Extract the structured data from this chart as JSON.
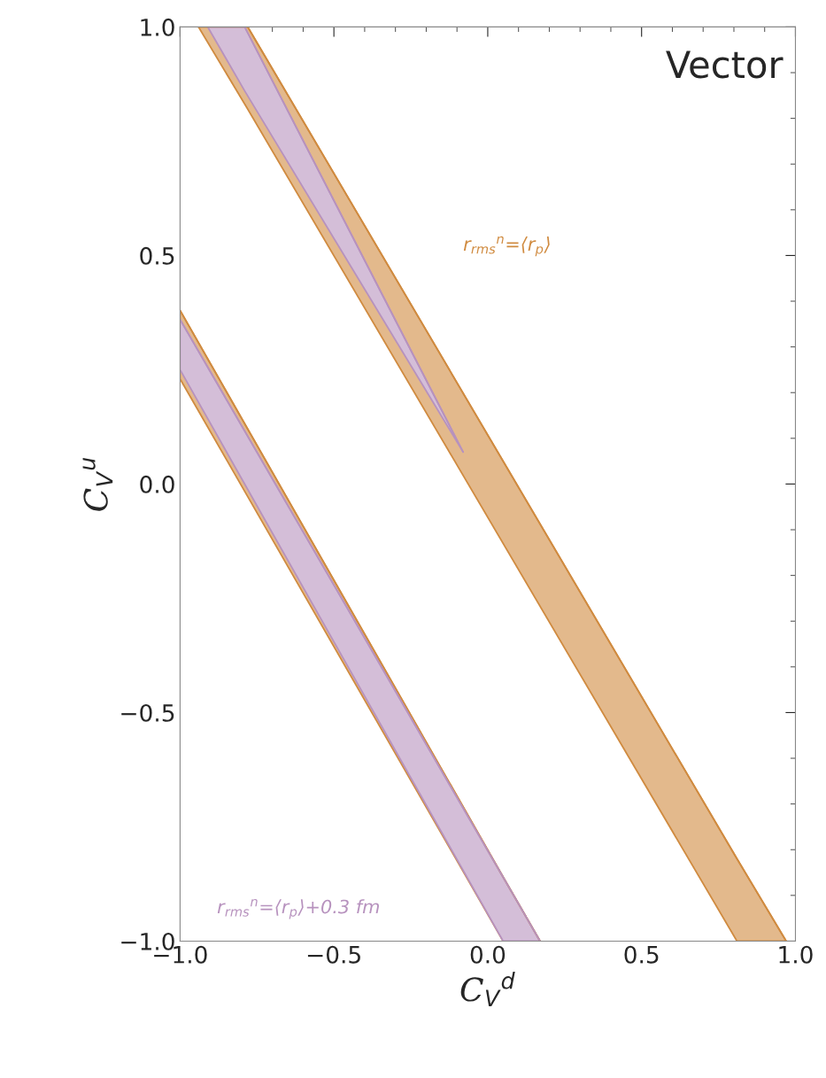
{
  "chart_data": {
    "type": "line",
    "xlabel": "C$_{V}$$^{d}$",
    "ylabel": "C$_{V}$$^{u}$",
    "xlim": [
      -1.0,
      1.0
    ],
    "ylim": [
      -1.0,
      1.0
    ],
    "xticks": [
      {
        "value": -1.0,
        "label": "−1.0"
      },
      {
        "value": -0.5,
        "label": "−0.5"
      },
      {
        "value": 0.0,
        "label": "0.0"
      },
      {
        "value": 0.5,
        "label": "0.5"
      },
      {
        "value": 1.0,
        "label": "1.0"
      }
    ],
    "yticks": [
      {
        "value": -1.0,
        "label": "−1.0"
      },
      {
        "value": -0.5,
        "label": "−0.5"
      },
      {
        "value": 0.0,
        "label": "0.0"
      },
      {
        "value": 0.5,
        "label": "0.5"
      },
      {
        "value": 1.0,
        "label": "1.0"
      }
    ],
    "grid": false,
    "series": [
      {
        "color": "#d08b40",
        "x": [
          -0.94,
          -0.78,
          0.81,
          0.97
        ],
        "values": [
          1.0,
          1.0,
          -0.82,
          -1.0
        ],
        "upper": [
          1.0,
          1.0,
          -0.82,
          -1.0
        ],
        "lower": [
          1.0,
          0.82,
          -1.0,
          -1.0
        ]
      },
      {
        "color": "#d08b40",
        "x": [
          -1.0,
          0.05,
          0.17
        ],
        "values": [
          0.38,
          -0.86,
          -1.0
        ],
        "upper": [
          0.38,
          -0.86,
          -1.0
        ],
        "lower": [
          0.23,
          -1.0,
          -1.0
        ]
      },
      {
        "color": "#b792be",
        "x": [
          -0.91,
          -0.79,
          -0.08
        ],
        "values": [
          1.0,
          1.0,
          0.07
        ],
        "upper": [
          1.0,
          1.0,
          0.07
        ],
        "lower": [
          1.0,
          0.86,
          0.07
        ]
      },
      {
        "color": "#b792be",
        "x": [
          -1.0,
          0.05,
          0.17
        ],
        "values": [
          0.36,
          -0.86,
          -1.0
        ],
        "upper": [
          0.36,
          -0.86,
          -1.0
        ],
        "lower": [
          0.25,
          -1.0,
          -1.0
        ]
      }
    ],
    "annotations": [
      "Vector",
      "r$_{rms}$$^{n}$=⟨r$_{p}$⟩",
      "r$_{rms}$$^{n}$=⟨r$_{p}$⟩+0.3 fm"
    ]
  }
}
